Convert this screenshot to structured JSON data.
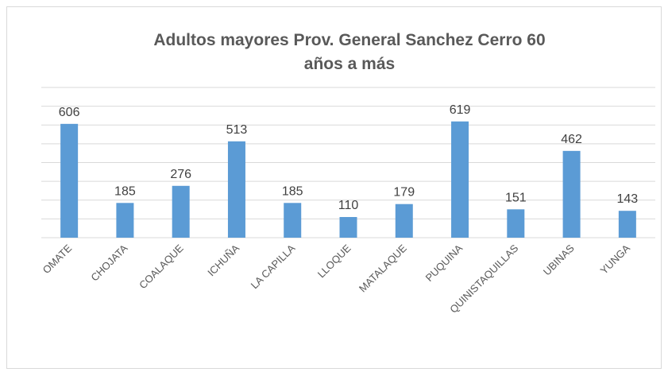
{
  "chart_data": {
    "type": "bar",
    "title": "Adultos mayores Prov. General Sanchez Cerro 60 años a más",
    "categories": [
      "OMATE",
      "CHOJATA",
      "COALAQUE",
      "ICHUÑA",
      "LA CAPILLA",
      "LLOQUE",
      "MATALAQUE",
      "PUQUINA",
      "QUINISTAQUILLAS",
      "UBINAS",
      "YUNGA"
    ],
    "values": [
      606,
      185,
      276,
      513,
      185,
      110,
      179,
      619,
      151,
      462,
      143
    ],
    "color": "#5b9bd5",
    "ylim": [
      0,
      800
    ],
    "yticks": [
      0,
      100,
      200,
      300,
      400,
      500,
      600,
      700,
      800
    ],
    "grid": true
  }
}
